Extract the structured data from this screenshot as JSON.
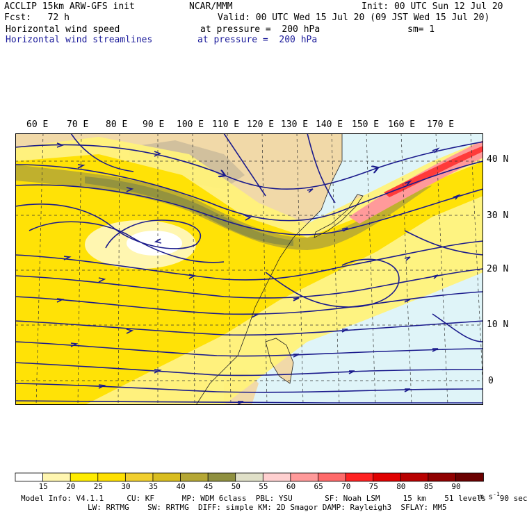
{
  "header": {
    "line1_left": "ACCLIP 15km ARW-GFS init",
    "line1_center": "NCAR/MMM",
    "line1_right": "Init: 00 UTC Sun 12 Jul 20",
    "line2_left": "Fcst:   72 h",
    "line2_right": "Valid: 00 UTC Wed 15 Jul 20 (09 JST Wed 15 Jul 20)",
    "field1_name": "Horizontal wind speed",
    "field1_level": "at pressure =  200 hPa",
    "field1_sm": "sm= 1",
    "field2_name": "Horizontal wind streamlines",
    "field2_level": "at pressure =  200 hPa"
  },
  "map": {
    "lon_labels": [
      "60 E",
      "70 E",
      "80 E",
      "90 E",
      "100 E",
      "110 E",
      "120 E",
      "130 E",
      "140 E",
      "150 E",
      "160 E",
      "170 E"
    ],
    "lat_labels": [
      "40 N",
      "30 N",
      "20 N",
      "10 N",
      "0"
    ]
  },
  "colorbar": {
    "levels": [
      "15",
      "20",
      "25",
      "30",
      "35",
      "40",
      "45",
      "50",
      "55",
      "60",
      "65",
      "70",
      "75",
      "80",
      "85",
      "90"
    ],
    "colors": [
      "#ffffff",
      "#fff6b0",
      "#ffec00",
      "#ffe000",
      "#f1cf2e",
      "#d9bd1f",
      "#b5a735",
      "#8f9040",
      "#e0e0c8",
      "#ffd0d0",
      "#ff9a9a",
      "#ff6a6a",
      "#ff2222",
      "#e00000",
      "#b80000",
      "#900000",
      "#6a0000"
    ],
    "units": "m s",
    "units_exp": "-1"
  },
  "footer": {
    "line1": "Model Info: V4.1.1     CU: KF      MP: WDM 6class  PBL: YSU       SF: Noah LSM     15 km    51 levels   90 sec",
    "line2": "LW: RRTMG    SW: RRTMG  DIFF: simple KM: 2D Smagor DAMP: Rayleigh3  SFLAY: MM5"
  },
  "legend_colors": {
    "streamline": "#1a1a8c",
    "ocean": "#dff4f8",
    "land": "#f1d9a8"
  }
}
